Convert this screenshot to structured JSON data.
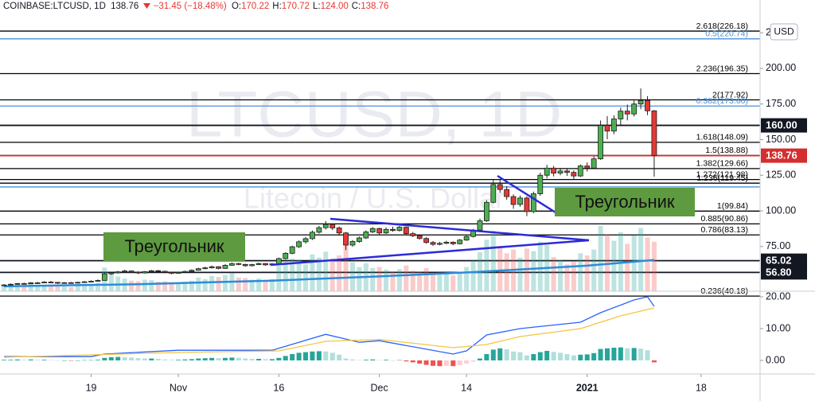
{
  "header": {
    "symbol": "COINBASE:LTCUSD, 1D",
    "last": "138.76",
    "change": "−31.45 (−18.48%)",
    "ohlc": [
      {
        "label": "O:",
        "value": "170.22"
      },
      {
        "label": "H:",
        "value": "170.72"
      },
      {
        "label": "L:",
        "value": "124.00"
      },
      {
        "label": "C:",
        "value": "138.76"
      }
    ]
  },
  "chart_data": {
    "type": "candlestick",
    "watermark": {
      "symbol": "LTCUSD, 1D",
      "description": "Litecoin / U.S. Dollar"
    },
    "currency": "USD",
    "xlim": [
      -0.6,
      112.8
    ],
    "xticks": [
      {
        "value": 13,
        "label": "19"
      },
      {
        "value": 26,
        "label": "Nov"
      },
      {
        "value": 41,
        "label": "16"
      },
      {
        "value": 56,
        "label": "Dec"
      },
      {
        "value": 69,
        "label": "14"
      },
      {
        "value": 87,
        "label": "2021"
      },
      {
        "value": 104,
        "label": "18"
      }
    ],
    "ylim": [
      43.6,
      248
    ],
    "yticks": [
      {
        "value": 225,
        "label": "225.00"
      },
      {
        "value": 200,
        "label": "200.00"
      },
      {
        "value": 175,
        "label": "175.00"
      },
      {
        "value": 150,
        "label": "150.00"
      },
      {
        "value": 125,
        "label": "125.00"
      },
      {
        "value": 100,
        "label": "100.00"
      },
      {
        "value": 75,
        "label": "75.00"
      }
    ],
    "up_color": "#4caf50",
    "down_color": "#e53935",
    "ohlc": [
      [
        47.6,
        48.6,
        47.2,
        48
      ],
      [
        48,
        49,
        47.7,
        48.5
      ],
      [
        48.5,
        49.4,
        48.1,
        49
      ],
      [
        49,
        49.6,
        48.4,
        48.8
      ],
      [
        48.8,
        50,
        48.5,
        49.5
      ],
      [
        49.5,
        50.2,
        49,
        49.5
      ],
      [
        49.5,
        50.6,
        49.2,
        50
      ],
      [
        50,
        50.8,
        49.4,
        49.8
      ],
      [
        49.8,
        50.1,
        48.7,
        49.2
      ],
      [
        49.2,
        50,
        48.9,
        49.6
      ],
      [
        49.6,
        50.1,
        49.1,
        49.5
      ],
      [
        49.5,
        50.3,
        49.2,
        49.8
      ],
      [
        49.8,
        50.8,
        49.5,
        50.2
      ],
      [
        50.2,
        51.2,
        49.9,
        50.6
      ],
      [
        50.6,
        51.8,
        50.2,
        51.2
      ],
      [
        51.2,
        56.5,
        51,
        55.8
      ],
      [
        55.8,
        57.2,
        55.1,
        56.5
      ],
      [
        56.5,
        57.8,
        55.9,
        57.2
      ],
      [
        57.2,
        58.6,
        56.8,
        57.8
      ],
      [
        57.8,
        58.2,
        56.4,
        57
      ],
      [
        57,
        57.5,
        55.6,
        56.4
      ],
      [
        56.4,
        57.8,
        56,
        57.3
      ],
      [
        57.3,
        58.6,
        56.9,
        58
      ],
      [
        58,
        58.5,
        57,
        57.6
      ],
      [
        57.6,
        58,
        56.2,
        56.8
      ],
      [
        56.8,
        57.2,
        55.5,
        56.2
      ],
      [
        56.2,
        57.3,
        55.8,
        56.8
      ],
      [
        56.8,
        58,
        56.4,
        57.5
      ],
      [
        57.5,
        58.9,
        57.1,
        58.3
      ],
      [
        58.3,
        60,
        58,
        59.4
      ],
      [
        59.4,
        60.8,
        59,
        60
      ],
      [
        60,
        61.6,
        59.5,
        60.8
      ],
      [
        60.8,
        61.2,
        59,
        59.6
      ],
      [
        59.6,
        62.5,
        59.3,
        61.8
      ],
      [
        61.8,
        63.8,
        61.4,
        63
      ],
      [
        63,
        63.6,
        61.8,
        62.4
      ],
      [
        62.4,
        62.9,
        60.8,
        61.5
      ],
      [
        61.5,
        62.8,
        61,
        62.3
      ],
      [
        62.3,
        63.7,
        61.9,
        63
      ],
      [
        63,
        63.4,
        61.5,
        62.1
      ],
      [
        62.1,
        63.3,
        61.7,
        62.8
      ],
      [
        62.8,
        67.2,
        62.4,
        66.5
      ],
      [
        66.5,
        71,
        65.8,
        70.2
      ],
      [
        70.2,
        75.6,
        69.5,
        74.8
      ],
      [
        74.8,
        79.2,
        73.9,
        78.3
      ],
      [
        78.3,
        81.6,
        77,
        80.5
      ],
      [
        80.5,
        86.2,
        79.6,
        85
      ],
      [
        85,
        89.5,
        84,
        88.2
      ],
      [
        88.2,
        92.8,
        86.9,
        90.5
      ],
      [
        90.5,
        91.2,
        86.5,
        88
      ],
      [
        88,
        89,
        82.5,
        84.5
      ],
      [
        84.5,
        85.2,
        72.5,
        76
      ],
      [
        76,
        79.5,
        74.8,
        78.5
      ],
      [
        78.5,
        82,
        77.6,
        81
      ],
      [
        81,
        86.3,
        80.2,
        85.2
      ],
      [
        85.2,
        88.6,
        84.4,
        87.6
      ],
      [
        87.6,
        88.2,
        83.5,
        84.5
      ],
      [
        84.5,
        88.4,
        83.8,
        87
      ],
      [
        87,
        88.9,
        85.3,
        86.2
      ],
      [
        86.2,
        89.4,
        85.5,
        88.5
      ],
      [
        88.5,
        89,
        83.1,
        84
      ],
      [
        84,
        85.2,
        81.6,
        82.5
      ],
      [
        82.5,
        83.4,
        79.8,
        80.6
      ],
      [
        80.6,
        81.5,
        76.9,
        77.8
      ],
      [
        77.8,
        78.8,
        75.4,
        76.5
      ],
      [
        76.5,
        78.2,
        75.8,
        77.2
      ],
      [
        77.2,
        79,
        76.6,
        78
      ],
      [
        78,
        78.6,
        75.9,
        76.9
      ],
      [
        76.9,
        80.2,
        76.4,
        79.5
      ],
      [
        79.5,
        82.8,
        78.9,
        82
      ],
      [
        82,
        87.4,
        81.3,
        86.5
      ],
      [
        86.5,
        94.6,
        85.9,
        93
      ],
      [
        93,
        107.5,
        92.2,
        106
      ],
      [
        106,
        121.6,
        105.2,
        118.5
      ],
      [
        118.5,
        122.4,
        112.6,
        115
      ],
      [
        115,
        117.3,
        107.8,
        110
      ],
      [
        110,
        111.6,
        101.5,
        104.5
      ],
      [
        104.5,
        110.8,
        102.9,
        109
      ],
      [
        109,
        110.2,
        96.3,
        99.5
      ],
      [
        99.5,
        113.5,
        98.4,
        112
      ],
      [
        112,
        126.8,
        110.5,
        125
      ],
      [
        125,
        132.3,
        122.8,
        130
      ],
      [
        130,
        131.5,
        124.2,
        126.5
      ],
      [
        126.5,
        130.2,
        125,
        128
      ],
      [
        128,
        129.6,
        124.6,
        127
      ],
      [
        127,
        128.4,
        122.3,
        124.5
      ],
      [
        124.5,
        132.6,
        123.8,
        131.5
      ],
      [
        131.5,
        134,
        127.6,
        130
      ],
      [
        130,
        138.2,
        129.3,
        136.5
      ],
      [
        136.5,
        163.4,
        135.8,
        160
      ],
      [
        160,
        166.5,
        150.2,
        156
      ],
      [
        156,
        167,
        153.8,
        164.5
      ],
      [
        164.5,
        172.5,
        160.1,
        170
      ],
      [
        170,
        174.6,
        163.5,
        168
      ],
      [
        168,
        177.8,
        166.2,
        175
      ],
      [
        175,
        185.9,
        171.4,
        177.5
      ],
      [
        177.5,
        180.5,
        167.2,
        170.22
      ],
      [
        170.22,
        170.72,
        124,
        138.76
      ]
    ],
    "volume": [
      1.2,
      1.0,
      1.3,
      1.1,
      1.4,
      0.9,
      1.2,
      1.0,
      1.1,
      0.9,
      0.8,
      1.0,
      1.2,
      1.4,
      1.6,
      4.5,
      3.2,
      2.8,
      2.4,
      2.0,
      1.9,
      2.2,
      2.1,
      1.8,
      1.9,
      1.7,
      1.6,
      1.8,
      2.0,
      2.6,
      2.3,
      2.9,
      2.7,
      3.1,
      3.4,
      2.6,
      2.5,
      2.2,
      2.4,
      2.1,
      2.3,
      4.8,
      5.6,
      6.2,
      5.9,
      5.1,
      7.0,
      6.4,
      7.5,
      6.2,
      6.8,
      9.2,
      5.5,
      4.6,
      5.3,
      4.4,
      4.6,
      4.1,
      3.8,
      4.2,
      4.9,
      3.9,
      3.6,
      4.4,
      3.5,
      3.1,
      3.3,
      3.0,
      3.4,
      4.6,
      5.8,
      7.4,
      9.8,
      11.5,
      8.6,
      7.2,
      7.9,
      6.4,
      8.1,
      7.6,
      9.4,
      8.8,
      6.5,
      5.9,
      5.1,
      5.6,
      7.2,
      6.8,
      7.9,
      12.4,
      10.8,
      9.6,
      11.2,
      9.0,
      10.6,
      12.0,
      10.2,
      9.4
    ],
    "moving_average": {
      "color": "#2e8bd8",
      "x": [
        0,
        20,
        40,
        56,
        70,
        87,
        97
      ],
      "values": [
        47,
        48.5,
        51,
        54,
        57,
        61.5,
        65.5
      ]
    },
    "levels": [
      {
        "value": 226.18,
        "label": "2.618(226.18)",
        "color": "#000000"
      },
      {
        "value": 220.74,
        "label": "0.5(220.74)",
        "color": "#4a90d9"
      },
      {
        "value": 196.35,
        "label": "2.236(196.35)",
        "color": "#000000"
      },
      {
        "value": 177.92,
        "label": "2(177.92)",
        "color": "#000000"
      },
      {
        "value": 173.6,
        "label": "0.382(173.60)",
        "color": "#4a90d9"
      },
      {
        "value": 148.09,
        "label": "1.618(148.09)",
        "color": "#000000"
      },
      {
        "value": 138.88,
        "label": "1.5(138.88)",
        "color": "#000000"
      },
      {
        "value": 129.66,
        "label": "1.382(129.66)",
        "color": "#000000"
      },
      {
        "value": 121.98,
        "label": "1.272(121.98)",
        "color": "#000000"
      },
      {
        "value": 119.45,
        "label": "1.236(119.45)",
        "color": "#000000"
      },
      {
        "value": 116.8,
        "label": null,
        "color": "#4a90d9"
      },
      {
        "value": 99.84,
        "label": "1(99.84)",
        "color": "#000000"
      },
      {
        "value": 90.86,
        "label": "0.885(90.86)",
        "color": "#000000"
      },
      {
        "value": 83.13,
        "label": "0.786(83.13)",
        "color": "#000000"
      },
      {
        "value": 40.18,
        "label": "0.236(40.18)",
        "color": "#000000"
      }
    ],
    "price_tags": [
      {
        "value": 160,
        "label": "160.00",
        "color": "#131722"
      },
      {
        "value": 138.76,
        "label": "138.76",
        "color": "#d32f2f"
      },
      {
        "value": 65.02,
        "label": "65.02",
        "color": "#131722"
      },
      {
        "value": 56.8,
        "label": "56.80",
        "color": "#131722"
      }
    ],
    "annotations": [
      "Треугольник",
      "Треугольник"
    ],
    "macd": {
      "ylim": [
        -4.25,
        21.75
      ],
      "yticks": [
        {
          "value": 20,
          "label": "20.00"
        },
        {
          "value": 10,
          "label": "10.00"
        },
        {
          "value": 0,
          "label": "0.00"
        }
      ],
      "histogram": [
        0.2,
        0.2,
        0.3,
        0.2,
        0.3,
        0.2,
        0.2,
        0.1,
        0.0,
        0.0,
        -0.1,
        0.0,
        0.1,
        0.1,
        0.2,
        0.8,
        1.0,
        1.1,
        1.0,
        0.9,
        0.7,
        0.6,
        0.6,
        0.5,
        0.3,
        0.2,
        0.2,
        0.3,
        0.4,
        0.6,
        0.7,
        0.8,
        0.7,
        0.8,
        0.9,
        0.8,
        0.6,
        0.5,
        0.5,
        0.4,
        0.4,
        0.8,
        1.4,
        2.0,
        2.4,
        2.6,
        2.8,
        2.9,
        2.8,
        2.4,
        1.8,
        0.6,
        0.3,
        0.1,
        0.2,
        0.3,
        0.1,
        0.2,
        0.0,
        0.1,
        -0.3,
        -0.6,
        -1.0,
        -1.4,
        -1.7,
        -1.8,
        -1.7,
        -1.8,
        -1.5,
        -1.0,
        -0.4,
        0.6,
        2.0,
        3.4,
        3.8,
        3.5,
        2.8,
        2.6,
        1.6,
        2.0,
        2.6,
        3.0,
        2.7,
        2.4,
        2.0,
        1.6,
        1.8,
        1.9,
        2.3,
        3.6,
        3.8,
        4.0,
        4.1,
        3.8,
        3.9,
        3.7,
        3.2,
        -0.6
      ],
      "lines": [
        {
          "color": "#2962ff",
          "x": [
            0,
            13,
            15,
            26,
            40,
            48,
            53,
            56,
            67,
            69,
            72,
            77,
            86,
            89,
            94,
            96,
            97
          ],
          "values": [
            1.2,
            1.2,
            2,
            3.2,
            3.2,
            8.2,
            5.7,
            6.2,
            2,
            3,
            8,
            10,
            12,
            15,
            19,
            20,
            17
          ]
        },
        {
          "color": "#f4c542",
          "x": [
            0,
            26,
            41,
            48,
            56,
            67,
            72,
            77,
            86,
            92,
            97
          ],
          "values": [
            1,
            2.5,
            3,
            6,
            6.6,
            4,
            5,
            7.5,
            10,
            14,
            16.5
          ]
        }
      ]
    }
  }
}
